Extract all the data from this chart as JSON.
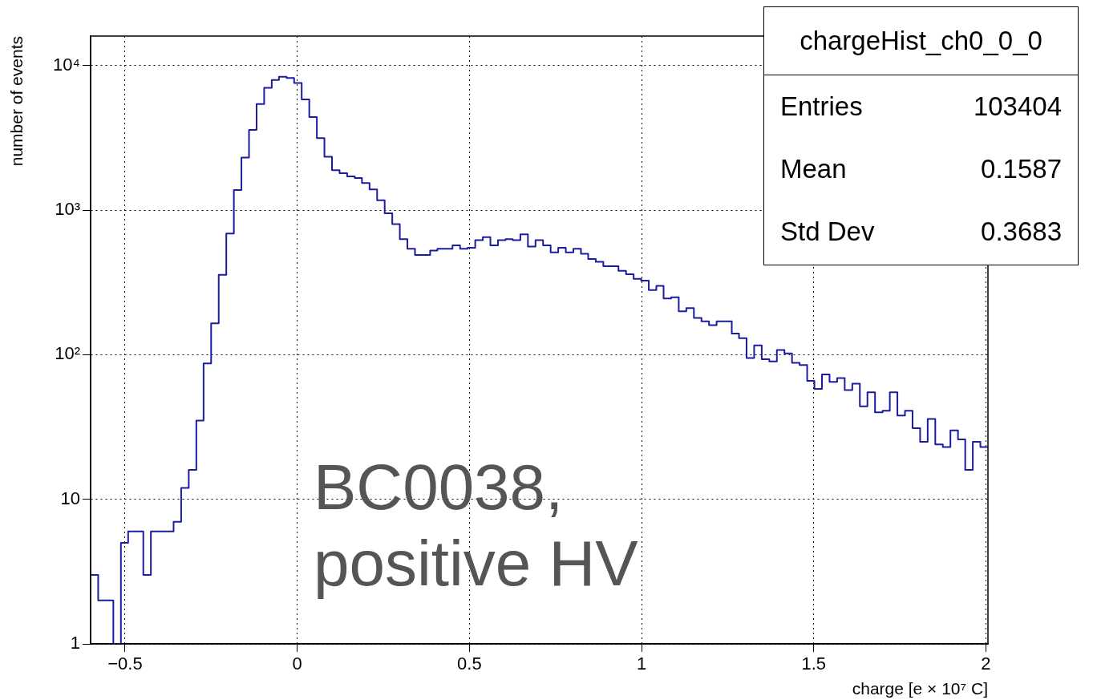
{
  "chart_data": {
    "type": "histogram",
    "xlabel": "charge [e × 10⁷ C]",
    "ylabel": "number of events",
    "bins": [
      -0.6,
      -0.578,
      -0.556,
      -0.534,
      -0.512,
      -0.491,
      -0.469,
      -0.447,
      -0.425,
      -0.403,
      -0.381,
      -0.359,
      -0.337,
      -0.315,
      -0.293,
      -0.272,
      -0.25,
      -0.228,
      -0.206,
      -0.184,
      -0.162,
      -0.14,
      -0.118,
      -0.096,
      -0.074,
      -0.053,
      -0.031,
      -0.009,
      0.013,
      0.035,
      0.057,
      0.079,
      0.101,
      0.123,
      0.145,
      0.167,
      0.188,
      0.21,
      0.232,
      0.254,
      0.276,
      0.298,
      0.32,
      0.342,
      0.364,
      0.386,
      0.407,
      0.429,
      0.451,
      0.473,
      0.495,
      0.517,
      0.539,
      0.561,
      0.583,
      0.605,
      0.626,
      0.648,
      0.67,
      0.692,
      0.714,
      0.736,
      0.758,
      0.78,
      0.802,
      0.824,
      0.845,
      0.867,
      0.889,
      0.911,
      0.933,
      0.955,
      0.977,
      0.999,
      1.021,
      1.043,
      1.064,
      1.086,
      1.108,
      1.13,
      1.152,
      1.174,
      1.196,
      1.218,
      1.24,
      1.262,
      1.283,
      1.305,
      1.327,
      1.349,
      1.371,
      1.393,
      1.415,
      1.437,
      1.459,
      1.481,
      1.502,
      1.524,
      1.546,
      1.568,
      1.59,
      1.612,
      1.634,
      1.656,
      1.678,
      1.7,
      1.721,
      1.743,
      1.765,
      1.787,
      1.809,
      1.831,
      1.853,
      1.875,
      1.897,
      1.919,
      1.94,
      1.962,
      1.984,
      2.006
    ],
    "values": [
      3,
      2,
      2,
      null,
      5,
      6,
      6,
      3,
      6,
      6,
      6,
      7,
      12,
      16,
      35,
      87,
      165,
      357,
      690,
      1380,
      2310,
      3590,
      5420,
      7030,
      7960,
      8370,
      8220,
      7570,
      5840,
      4400,
      3150,
      2340,
      1890,
      1800,
      1710,
      1670,
      1540,
      1390,
      1170,
      950,
      800,
      630,
      540,
      490,
      490,
      525,
      540,
      540,
      570,
      540,
      550,
      620,
      650,
      570,
      620,
      630,
      620,
      680,
      560,
      620,
      570,
      510,
      550,
      510,
      540,
      500,
      460,
      440,
      410,
      410,
      380,
      360,
      335,
      325,
      280,
      300,
      245,
      250,
      200,
      210,
      180,
      170,
      160,
      170,
      170,
      140,
      130,
      95,
      116,
      93,
      90,
      108,
      102,
      88,
      85,
      66,
      58,
      73,
      65,
      69,
      57,
      63,
      44,
      55,
      40,
      41,
      55,
      38,
      41,
      31,
      25,
      36,
      24,
      23,
      30,
      26,
      16,
      25,
      23
    ],
    "color": "#1c1ca0",
    "xlim": [
      -0.6,
      2.006
    ],
    "xticks": [
      {
        "value": -0.5,
        "label": "−0.5"
      },
      0,
      0.5,
      1,
      1.5,
      2
    ],
    "ylim": [
      1,
      16000
    ],
    "yticks": [
      1,
      10,
      {
        "value": 100,
        "label": "10²"
      },
      {
        "value": 1000,
        "label": "10³"
      },
      {
        "value": 10000,
        "label": "10⁴"
      }
    ],
    "log": "y",
    "grid": true,
    "legend": false,
    "annotations": [
      "chargeHist_ch0_0_0",
      "Entries",
      "103404",
      "Mean",
      "0.1587",
      "Std Dev",
      "0.3683",
      "BC0038, positive HV"
    ]
  }
}
